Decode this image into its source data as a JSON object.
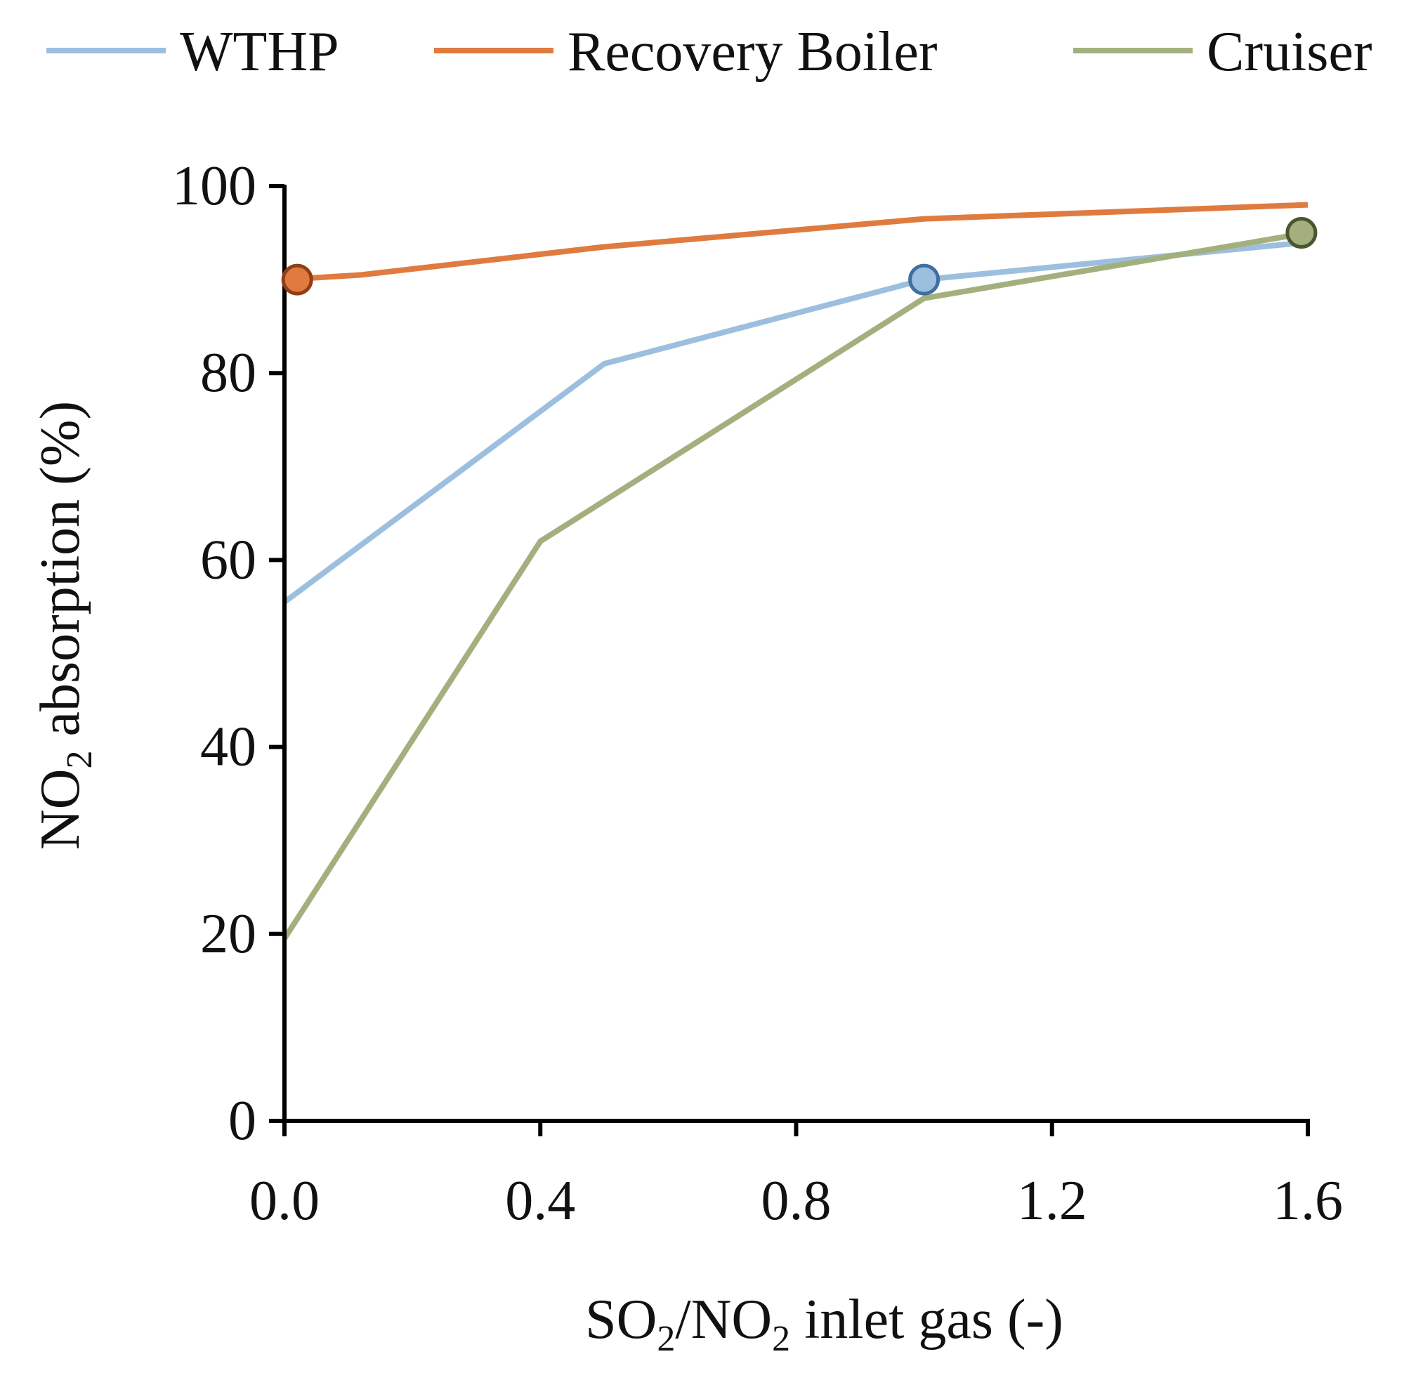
{
  "chart_data": {
    "type": "line",
    "title": "",
    "xlabel": {
      "main": "SO",
      "sub1": "2",
      "mid": "/NO",
      "sub2": "2",
      "tail": " inlet gas (-)"
    },
    "ylabel": {
      "main": "NO",
      "sub": "2",
      "tail": " absorption (%)"
    },
    "xlim": [
      0,
      1.6
    ],
    "ylim": [
      0,
      100
    ],
    "xticks": [
      0,
      0.4,
      0.8,
      1.2,
      1.6
    ],
    "xtick_labels": [
      "0.0",
      "0.4",
      "0.8",
      "1.2",
      "1.6"
    ],
    "yticks": [
      0,
      20,
      40,
      60,
      80,
      100
    ],
    "ytick_labels": [
      "0",
      "20",
      "40",
      "60",
      "80",
      "100"
    ],
    "grid": false,
    "legend_position": "top",
    "series": [
      {
        "name": "WTHP",
        "color": "#9dbfdf",
        "marker_fill": "#9dbfdf",
        "marker_stroke": "#3f6f9f",
        "points": [
          [
            0,
            55.5
          ],
          [
            0.5,
            81
          ],
          [
            1.0,
            90
          ],
          [
            1.6,
            94
          ]
        ],
        "marker_at": [
          1.0,
          90
        ]
      },
      {
        "name": "Recovery Boiler",
        "color": "#e07b3f",
        "marker_fill": "#e07b3f",
        "marker_stroke": "#8f3f17",
        "points": [
          [
            0,
            90
          ],
          [
            0.12,
            90.5
          ],
          [
            0.5,
            93.5
          ],
          [
            1.0,
            96.5
          ],
          [
            1.6,
            98
          ]
        ],
        "marker_at": [
          0.02,
          90
        ]
      },
      {
        "name": "Cruiser",
        "color": "#a3b07e",
        "marker_fill": "#a3b07e",
        "marker_stroke": "#4b5530",
        "points": [
          [
            0,
            19.5
          ],
          [
            0.4,
            62
          ],
          [
            1.0,
            88
          ],
          [
            1.6,
            95
          ]
        ],
        "marker_at": [
          1.59,
          95
        ]
      }
    ]
  }
}
